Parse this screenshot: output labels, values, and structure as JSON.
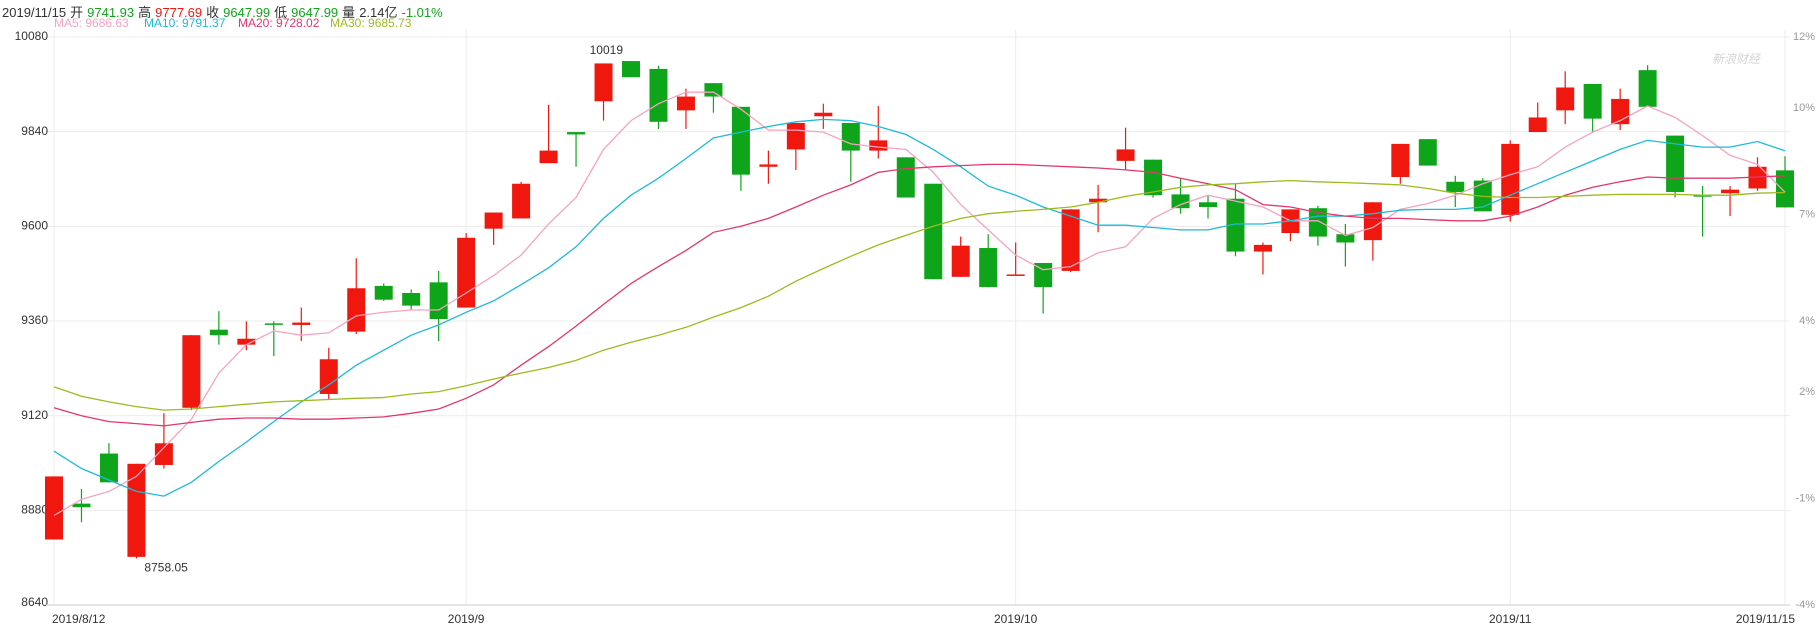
{
  "chart_data": {
    "type": "candlestick",
    "header": {
      "labels": [
        "开",
        "高",
        "收",
        "低",
        "量"
      ],
      "volume": "2.14亿",
      "change": "-1.01%"
    },
    "watermark": "新浪财经",
    "categories": [
      "2019/8/12",
      null,
      null,
      null,
      null,
      null,
      null,
      null,
      null,
      null,
      null,
      null,
      null,
      null,
      null,
      "2019/9",
      null,
      null,
      null,
      null,
      null,
      null,
      null,
      null,
      null,
      null,
      null,
      null,
      null,
      null,
      null,
      null,
      null,
      null,
      null,
      "2019/10",
      null,
      null,
      null,
      null,
      null,
      null,
      null,
      null,
      null,
      null,
      null,
      null,
      null,
      null,
      null,
      null,
      null,
      "2019/11",
      null,
      null,
      null,
      null,
      null,
      null,
      null,
      null,
      null,
      "2019/11/15"
    ],
    "open": [
      8806,
      8897,
      9024,
      8762,
      8995,
      9140,
      9338,
      9300,
      9354,
      9350,
      9175,
      9333,
      9449,
      9431,
      9458,
      9394,
      9594,
      9620,
      9760,
      9839,
      9917,
      10019,
      9999,
      9894,
      9963,
      9903,
      9751,
      9795,
      9879,
      9862,
      9792,
      9775,
      9708,
      9472,
      9545,
      9475,
      9507,
      9487,
      9661,
      9766,
      9769,
      9681,
      9661,
      9670,
      9536,
      9583,
      9646,
      9580,
      9565,
      9725,
      9821,
      9713,
      9716,
      9629,
      9839,
      9894,
      9961,
      9859,
      9996,
      9830,
      9679,
      9684,
      9696,
      9741.93
    ],
    "high": [
      8966,
      8934,
      9050,
      8998,
      9126,
      9324,
      9385,
      9359,
      9359,
      9394,
      9292,
      9519,
      9455,
      9440,
      9487,
      9583,
      9635,
      9713,
      9908,
      9839,
      10013,
      10019,
      10007,
      9949,
      9963,
      9903,
      9792,
      9862,
      9911,
      9862,
      9905,
      9775,
      9708,
      9574,
      9580,
      9559,
      9507,
      9643,
      9705,
      9850,
      9769,
      9722,
      9679,
      9708,
      9559,
      9643,
      9652,
      9606,
      9661,
      9809,
      9821,
      9728,
      9722,
      9818,
      9914,
      9993,
      9961,
      9949,
      10008.52,
      9830,
      9702,
      9702,
      9775,
      9777.69
    ],
    "close": [
      8966,
      8888,
      8951,
      8998,
      9050,
      9324,
      9324,
      9315,
      9351,
      9356,
      9263,
      9443,
      9414,
      9399,
      9365,
      9571,
      9635,
      9708,
      9792,
      9833,
      10013,
      9978,
      9865,
      9929,
      9929,
      9731,
      9757,
      9862,
      9888,
      9792,
      9818,
      9673,
      9466,
      9551,
      9446,
      9478,
      9446,
      9643,
      9670,
      9795,
      9679,
      9646,
      9649,
      9536,
      9553,
      9643,
      9574,
      9559,
      9661,
      9809,
      9754,
      9687,
      9638,
      9809,
      9876,
      9952,
      9873,
      9923,
      9903,
      9687,
      9676,
      9693,
      9751,
      9647.99
    ],
    "low": [
      8806,
      8850,
      8951,
      8758.05,
      8986,
      9134,
      9300,
      9286,
      9271,
      9309,
      9161,
      9327,
      9411,
      9388,
      9309,
      9394,
      9553,
      9620,
      9760,
      9751,
      9868,
      9978,
      9847,
      9847,
      9888,
      9690,
      9708,
      9743,
      9847,
      9713,
      9772,
      9673,
      9466,
      9472,
      9446,
      9475,
      9379,
      9484,
      9585,
      9743,
      9673,
      9632,
      9620,
      9524,
      9478,
      9562,
      9551,
      9498,
      9513,
      9708,
      9754,
      9649,
      9638,
      9612,
      9839,
      9859,
      9839,
      9844,
      9903,
      9673,
      9574,
      9626,
      9690,
      9647.99
    ],
    "up_color": "#f0180e",
    "down_color": "#0ea51a",
    "series": [
      {
        "name": "MA5: 9686.63",
        "color": "#f4a3c3",
        "values": [
          8867,
          8908,
          8928,
          8966,
          9039,
          9111,
          9228,
          9300,
          9335,
          9324,
          9330,
          9373,
          9382,
          9388,
          9388,
          9431,
          9475,
          9527,
          9606,
          9673,
          9795,
          9868,
          9911,
          9940,
          9940,
          9897,
          9844,
          9844,
          9839,
          9809,
          9801,
          9795,
          9737,
          9655,
          9591,
          9527,
          9490,
          9498,
          9533,
          9548,
          9620,
          9655,
          9679,
          9664,
          9649,
          9614,
          9614,
          9577,
          9597,
          9643,
          9658,
          9679,
          9708,
          9731,
          9751,
          9801,
          9839,
          9868,
          9905,
          9876,
          9830,
          9780,
          9757,
          9686.63
        ]
      },
      {
        "name": "MA10: 9791.37",
        "color": "#1fb9d9",
        "values": [
          9030,
          8986,
          8957,
          8928,
          8916,
          8951,
          9004,
          9053,
          9105,
          9155,
          9198,
          9248,
          9286,
          9324,
          9350,
          9382,
          9411,
          9452,
          9495,
          9548,
          9620,
          9679,
          9722,
          9772,
          9824,
          9839,
          9853,
          9865,
          9871,
          9868,
          9853,
          9833,
          9795,
          9751,
          9702,
          9679,
          9649,
          9626,
          9603,
          9603,
          9597,
          9591,
          9591,
          9606,
          9606,
          9614,
          9626,
          9626,
          9632,
          9641,
          9643,
          9643,
          9649,
          9679,
          9708,
          9737,
          9766,
          9795,
          9818,
          9809,
          9801,
          9801,
          9815,
          9791.37
        ]
      },
      {
        "name": "MA20: 9728.02",
        "color": "#e1386c",
        "values": [
          9140,
          9120,
          9105,
          9100,
          9094,
          9103,
          9111,
          9114,
          9114,
          9111,
          9111,
          9114,
          9117,
          9126,
          9137,
          9164,
          9198,
          9248,
          9295,
          9347,
          9402,
          9455,
          9498,
          9539,
          9585,
          9600,
          9620,
          9649,
          9679,
          9705,
          9737,
          9746,
          9751,
          9754,
          9757,
          9757,
          9754,
          9751,
          9748,
          9743,
          9737,
          9722,
          9708,
          9693,
          9655,
          9649,
          9635,
          9626,
          9620,
          9620,
          9617,
          9614,
          9614,
          9626,
          9649,
          9679,
          9699,
          9713,
          9725,
          9722,
          9722,
          9722,
          9725,
          9728.02
        ]
      },
      {
        "name": "MA30: 9685.73",
        "color": "#9cbb1f",
        "values": [
          9193,
          9169,
          9155,
          9143,
          9134,
          9137,
          9143,
          9149,
          9155,
          9158,
          9161,
          9164,
          9166,
          9175,
          9181,
          9196,
          9213,
          9228,
          9242,
          9260,
          9286,
          9306,
          9324,
          9344,
          9370,
          9394,
          9423,
          9461,
          9493,
          9524,
          9553,
          9577,
          9600,
          9620,
          9632,
          9638,
          9643,
          9649,
          9661,
          9676,
          9687,
          9699,
          9705,
          9708,
          9713,
          9716,
          9713,
          9711,
          9708,
          9705,
          9696,
          9684,
          9676,
          9673,
          9673,
          9676,
          9679,
          9681,
          9681,
          9681,
          9679,
          9679,
          9684,
          9685.73
        ]
      }
    ],
    "ylim": [
      8640,
      10080
    ],
    "yticks": [
      8640,
      8880,
      9120,
      9360,
      9600,
      9840,
      10080
    ],
    "y2lim": [
      -4,
      12
    ],
    "y2ticks": [
      {
        "value": -4,
        "label": "-4%"
      },
      {
        "value": -1,
        "label": "-1%"
      },
      {
        "value": 2,
        "label": "2%"
      },
      {
        "value": 4,
        "label": "4%"
      },
      {
        "value": 7,
        "label": "7%"
      },
      {
        "value": 10,
        "label": "10%"
      },
      {
        "value": 12,
        "label": "12%"
      }
    ],
    "grid": true
  }
}
